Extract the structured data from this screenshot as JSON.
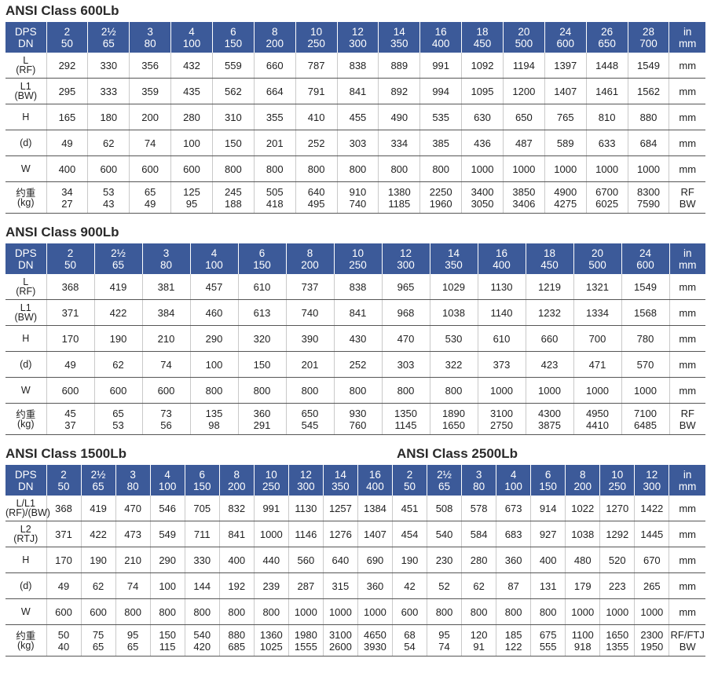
{
  "tables": [
    {
      "titles": [
        "ANSI Class 600Lb"
      ],
      "header": {
        "label": [
          "DPS",
          "DN"
        ],
        "columns": [
          [
            "2",
            "50"
          ],
          [
            "2½",
            "65"
          ],
          [
            "3",
            "80"
          ],
          [
            "4",
            "100"
          ],
          [
            "6",
            "150"
          ],
          [
            "8",
            "200"
          ],
          [
            "10",
            "250"
          ],
          [
            "12",
            "300"
          ],
          [
            "14",
            "350"
          ],
          [
            "16",
            "400"
          ],
          [
            "18",
            "450"
          ],
          [
            "20",
            "500"
          ],
          [
            "24",
            "600"
          ],
          [
            "26",
            "650"
          ],
          [
            "28",
            "700"
          ]
        ],
        "unit": [
          "in",
          "mm"
        ]
      },
      "rows": [
        {
          "label": [
            "L",
            "(RF)"
          ],
          "values": [
            292,
            330,
            356,
            432,
            559,
            660,
            787,
            838,
            889,
            991,
            1092,
            1194,
            1397,
            1448,
            1549
          ],
          "unit": [
            "mm"
          ]
        },
        {
          "label": [
            "L1",
            "(BW)"
          ],
          "values": [
            295,
            333,
            359,
            435,
            562,
            664,
            791,
            841,
            892,
            994,
            1095,
            1200,
            1407,
            1461,
            1562
          ],
          "unit": [
            "mm"
          ]
        },
        {
          "label": [
            "H"
          ],
          "values": [
            165,
            180,
            200,
            280,
            310,
            355,
            410,
            455,
            490,
            535,
            630,
            650,
            765,
            810,
            880
          ],
          "unit": [
            "mm"
          ]
        },
        {
          "label": [
            "(d)"
          ],
          "values": [
            49,
            62,
            74,
            100,
            150,
            201,
            252,
            303,
            334,
            385,
            436,
            487,
            589,
            633,
            684
          ],
          "unit": [
            "mm"
          ]
        },
        {
          "label": [
            "W"
          ],
          "values": [
            400,
            600,
            600,
            600,
            800,
            800,
            800,
            800,
            800,
            800,
            1000,
            1000,
            1000,
            1000,
            1000
          ],
          "unit": [
            "mm"
          ]
        },
        {
          "label": [
            "约重",
            "(kg)"
          ],
          "values": [
            [
              34,
              27
            ],
            [
              53,
              43
            ],
            [
              65,
              49
            ],
            [
              125,
              95
            ],
            [
              245,
              188
            ],
            [
              505,
              418
            ],
            [
              640,
              495
            ],
            [
              910,
              740
            ],
            [
              1380,
              1185
            ],
            [
              2250,
              1960
            ],
            [
              3400,
              3050
            ],
            [
              3850,
              3406
            ],
            [
              4900,
              4275
            ],
            [
              6700,
              6025
            ],
            [
              8300,
              7590
            ]
          ],
          "unit": [
            "RF",
            "BW"
          ]
        }
      ]
    },
    {
      "titles": [
        "ANSI Class 900Lb"
      ],
      "header": {
        "label": [
          "DPS",
          "DN"
        ],
        "columns": [
          [
            "2",
            "50"
          ],
          [
            "2½",
            "65"
          ],
          [
            "3",
            "80"
          ],
          [
            "4",
            "100"
          ],
          [
            "6",
            "150"
          ],
          [
            "8",
            "200"
          ],
          [
            "10",
            "250"
          ],
          [
            "12",
            "300"
          ],
          [
            "14",
            "350"
          ],
          [
            "16",
            "400"
          ],
          [
            "18",
            "450"
          ],
          [
            "20",
            "500"
          ],
          [
            "24",
            "600"
          ]
        ],
        "unit": [
          "in",
          "mm"
        ]
      },
      "rows": [
        {
          "label": [
            "L",
            "(RF)"
          ],
          "values": [
            368,
            419,
            381,
            457,
            610,
            737,
            838,
            965,
            1029,
            1130,
            1219,
            1321,
            1549
          ],
          "unit": [
            "mm"
          ]
        },
        {
          "label": [
            "L1",
            "(BW)"
          ],
          "values": [
            371,
            422,
            384,
            460,
            613,
            740,
            841,
            968,
            1038,
            1140,
            1232,
            1334,
            1568
          ],
          "unit": [
            "mm"
          ]
        },
        {
          "label": [
            "H"
          ],
          "values": [
            170,
            190,
            210,
            290,
            320,
            390,
            430,
            470,
            530,
            610,
            660,
            700,
            780
          ],
          "unit": [
            "mm"
          ]
        },
        {
          "label": [
            "(d)"
          ],
          "values": [
            49,
            62,
            74,
            100,
            150,
            201,
            252,
            303,
            322,
            373,
            423,
            471,
            570
          ],
          "unit": [
            "mm"
          ]
        },
        {
          "label": [
            "W"
          ],
          "values": [
            600,
            600,
            600,
            800,
            800,
            800,
            800,
            800,
            800,
            1000,
            1000,
            1000,
            1000
          ],
          "unit": [
            "mm"
          ]
        },
        {
          "label": [
            "约重",
            "(kg)"
          ],
          "values": [
            [
              45,
              37
            ],
            [
              65,
              53
            ],
            [
              73,
              56
            ],
            [
              135,
              98
            ],
            [
              360,
              291
            ],
            [
              650,
              545
            ],
            [
              930,
              760
            ],
            [
              1350,
              1145
            ],
            [
              1890,
              1650
            ],
            [
              3100,
              2750
            ],
            [
              4300,
              3875
            ],
            [
              4950,
              4410
            ],
            [
              7100,
              6485
            ]
          ],
          "unit": [
            "RF",
            "BW"
          ]
        }
      ]
    },
    {
      "titles": [
        "ANSI Class 1500Lb",
        "ANSI Class 2500Lb"
      ],
      "header": {
        "label": [
          "DPS",
          "DN"
        ],
        "columns": [
          [
            "2",
            "50"
          ],
          [
            "2½",
            "65"
          ],
          [
            "3",
            "80"
          ],
          [
            "4",
            "100"
          ],
          [
            "6",
            "150"
          ],
          [
            "8",
            "200"
          ],
          [
            "10",
            "250"
          ],
          [
            "12",
            "300"
          ],
          [
            "14",
            "350"
          ],
          [
            "16",
            "400"
          ],
          [
            "2",
            "50"
          ],
          [
            "2½",
            "65"
          ],
          [
            "3",
            "80"
          ],
          [
            "4",
            "100"
          ],
          [
            "6",
            "150"
          ],
          [
            "8",
            "200"
          ],
          [
            "10",
            "250"
          ],
          [
            "12",
            "300"
          ]
        ],
        "unit": [
          "in",
          "mm"
        ]
      },
      "rows": [
        {
          "label": [
            "L/L1",
            "(RF)/(BW)"
          ],
          "values": [
            368,
            419,
            470,
            546,
            705,
            832,
            991,
            1130,
            1257,
            1384,
            451,
            508,
            578,
            673,
            914,
            1022,
            1270,
            1422
          ],
          "unit": [
            "mm"
          ]
        },
        {
          "label": [
            "L2",
            "(RTJ)"
          ],
          "values": [
            371,
            422,
            473,
            549,
            711,
            841,
            1000,
            1146,
            1276,
            1407,
            454,
            540,
            584,
            683,
            927,
            1038,
            1292,
            1445
          ],
          "unit": [
            "mm"
          ]
        },
        {
          "label": [
            "H"
          ],
          "values": [
            170,
            190,
            210,
            290,
            330,
            400,
            440,
            560,
            640,
            690,
            190,
            230,
            280,
            360,
            400,
            480,
            520,
            670
          ],
          "unit": [
            "mm"
          ]
        },
        {
          "label": [
            "(d)"
          ],
          "values": [
            49,
            62,
            74,
            100,
            144,
            192,
            239,
            287,
            315,
            360,
            42,
            52,
            62,
            87,
            131,
            179,
            223,
            265
          ],
          "unit": [
            "mm"
          ]
        },
        {
          "label": [
            "W"
          ],
          "values": [
            600,
            600,
            800,
            800,
            800,
            800,
            800,
            1000,
            1000,
            1000,
            600,
            800,
            800,
            800,
            800,
            1000,
            1000,
            1000
          ],
          "unit": [
            "mm"
          ]
        },
        {
          "label": [
            "约重",
            "(kg)"
          ],
          "values": [
            [
              50,
              40
            ],
            [
              75,
              65
            ],
            [
              95,
              65
            ],
            [
              150,
              115
            ],
            [
              540,
              420
            ],
            [
              880,
              685
            ],
            [
              1360,
              1025
            ],
            [
              1980,
              1555
            ],
            [
              3100,
              2600
            ],
            [
              4650,
              3930
            ],
            [
              68,
              54
            ],
            [
              95,
              74
            ],
            [
              120,
              91
            ],
            [
              185,
              122
            ],
            [
              675,
              555
            ],
            [
              1100,
              918
            ],
            [
              1650,
              1355
            ],
            [
              2300,
              1950
            ]
          ],
          "unit": [
            "RF/FTJ",
            "BW"
          ]
        }
      ]
    }
  ]
}
